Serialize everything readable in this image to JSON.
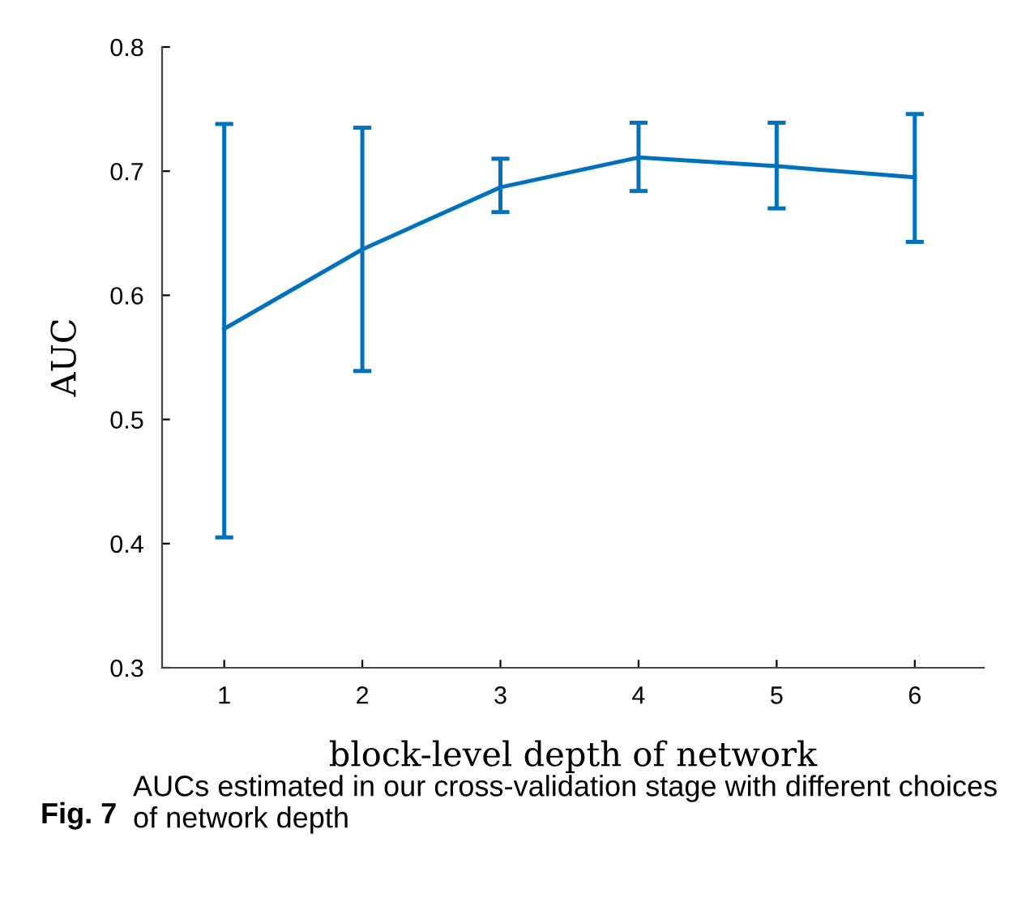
{
  "chart_data": {
    "type": "line",
    "xlabel": "block-level depth of network",
    "ylabel": "AUC",
    "x": [
      1,
      2,
      3,
      4,
      5,
      6
    ],
    "series": [
      {
        "color": "#0072bd",
        "values": [
          0.573,
          0.637,
          0.687,
          0.711,
          0.704,
          0.695
        ],
        "errors": [
          [
            0.405,
            0.738
          ],
          [
            0.539,
            0.735
          ],
          [
            0.667,
            0.71
          ],
          [
            0.684,
            0.739
          ],
          [
            0.67,
            0.739
          ],
          [
            0.643,
            0.746
          ]
        ]
      }
    ],
    "xlim": [
      0.55,
      6.5
    ],
    "xticks": [
      1,
      2,
      3,
      4,
      5,
      6
    ],
    "ylim": [
      0.3,
      0.8
    ],
    "yticks": [
      0.3,
      0.4,
      0.5,
      0.6,
      0.7,
      0.8
    ],
    "marker": "none",
    "line_style": "solid",
    "annotations": [
      "Fig. 7",
      "AUCs estimated in our cross-validation stage with different choices of network depth"
    ]
  }
}
